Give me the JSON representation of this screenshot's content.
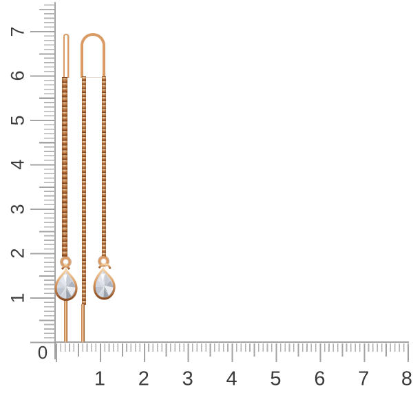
{
  "scene": {
    "type": "product-photo",
    "subject": "pair of rose-gold threader chain earrings with pear-cut clear stones shown against centimeter rulers",
    "background_color": "#ffffff"
  },
  "rulers": {
    "tick_color": "#a3a3a3",
    "minor_tick_color": "#b3b3b3",
    "label_color": "#3b3b3b",
    "vertical": {
      "origin_label": "0",
      "labels": [
        "1",
        "2",
        "3",
        "4",
        "5",
        "6",
        "7"
      ],
      "direction": "bottom-to-top",
      "label_style": "rotated-90-ccw"
    },
    "horizontal": {
      "labels": [
        "1",
        "2",
        "3",
        "4",
        "5",
        "6",
        "7",
        "8"
      ],
      "direction": "left-to-right",
      "label_style": "upright"
    }
  },
  "earrings": {
    "gold_colors": {
      "highlight": "#f7d6ab",
      "mid": "#d99b63",
      "dark": "#b06a35",
      "deep": "#8a4c22",
      "chain_shadow": "#7d4520"
    },
    "stone_colors": {
      "light": "#f1f2f5",
      "mid": "#c9cdd5",
      "dark": "#9aa1ac"
    },
    "left": {
      "view": "side-profile",
      "parts": [
        "ear-wire",
        "cable-chain",
        "jump-ring",
        "pear-stone-pendant",
        "threader-bar"
      ]
    },
    "right": {
      "view": "front",
      "parts": [
        "u-arch-wire",
        "thread-chain",
        "jump-ring",
        "pear-stone-pendant",
        "threader-bar"
      ]
    }
  }
}
